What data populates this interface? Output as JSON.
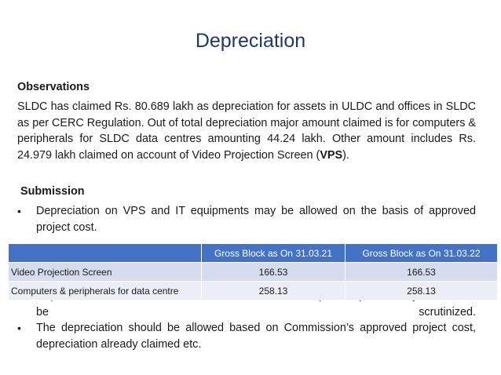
{
  "title": "Depreciation",
  "observations": {
    "heading": "Observations",
    "para_start": "SLDC  has claimed Rs. 80.689  lakh as depreciation for assets in ULDC and offices in SLDC as per CERC Regulation. Out of total depreciation major amount claimed is for computers & peripherals for SLDC data centres amounting 44.24 lakh. Other amount includes Rs. 24.979 lakh claimed on account of Video Projection Screen (",
    "para_bold": "VPS",
    "para_end": ")."
  },
  "submission": {
    "heading": "Submission",
    "bullets": [
      "Depreciation on VPS and IT equipments may be allowed on the basis of approved project cost.",
      "Depreciation on new assets such as AC, furniture, UPS, photocopier, battery etc. should be scrutinized.",
      "The depreciation should be allowed based on  Commission’s approved project cost, depreciation already claimed etc."
    ]
  },
  "table": {
    "headers": [
      "",
      "Gross Block as On 31.03.21",
      "Gross Block as On 31.03.22"
    ],
    "rows": [
      [
        "Video Projection Screen",
        "166.53",
        "166.53"
      ],
      [
        "Computers & peripherals for data centre",
        "258.13",
        "258.13"
      ]
    ]
  }
}
